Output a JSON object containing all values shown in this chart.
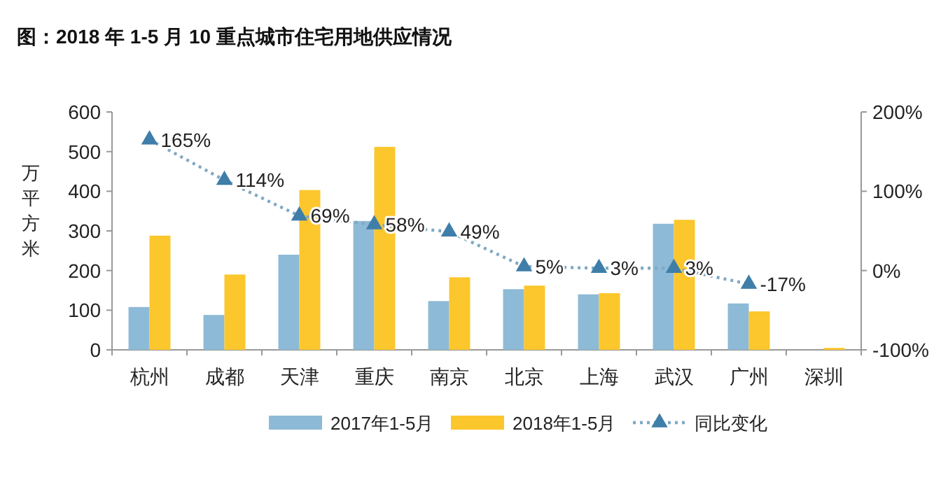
{
  "chart_data": {
    "type": "bar",
    "title": "图：2018 年 1-5 月 10 重点城市住宅用地供应情况",
    "ylabel": "万平方米",
    "categories": [
      "杭州",
      "成都",
      "天津",
      "重庆",
      "南京",
      "北京",
      "上海",
      "武汉",
      "广州",
      "深圳"
    ],
    "series": [
      {
        "name": "2017年1-5月",
        "color": "#8dbad6",
        "values": [
          108,
          88,
          240,
          325,
          123,
          153,
          140,
          318,
          117,
          null
        ]
      },
      {
        "name": "2018年1-5月",
        "color": "#fcc62d",
        "values": [
          288,
          190,
          403,
          512,
          183,
          162,
          143,
          328,
          97,
          5
        ]
      },
      {
        "name": "同比变化",
        "type": "line",
        "axis": "y2",
        "color": "#3f7ea8",
        "marker": "triangle",
        "line_style": "dotted",
        "values": [
          165,
          114,
          69,
          58,
          49,
          5,
          3,
          3,
          -17,
          null
        ],
        "value_labels": [
          "165%",
          "114%",
          "69%",
          "58%",
          "49%",
          "5%",
          "3%",
          "3%",
          "-17%",
          null
        ]
      }
    ],
    "ylim": [
      0,
      600
    ],
    "yticks": [
      0,
      100,
      200,
      300,
      400,
      500,
      600
    ],
    "y2lim": [
      -100,
      200
    ],
    "y2ticks": [
      {
        "value": -100,
        "label": "-100%"
      },
      {
        "value": 0,
        "label": "0%"
      },
      {
        "value": 100,
        "label": "100%"
      },
      {
        "value": 200,
        "label": "200%"
      }
    ],
    "grid": false,
    "legend": "bottom"
  }
}
